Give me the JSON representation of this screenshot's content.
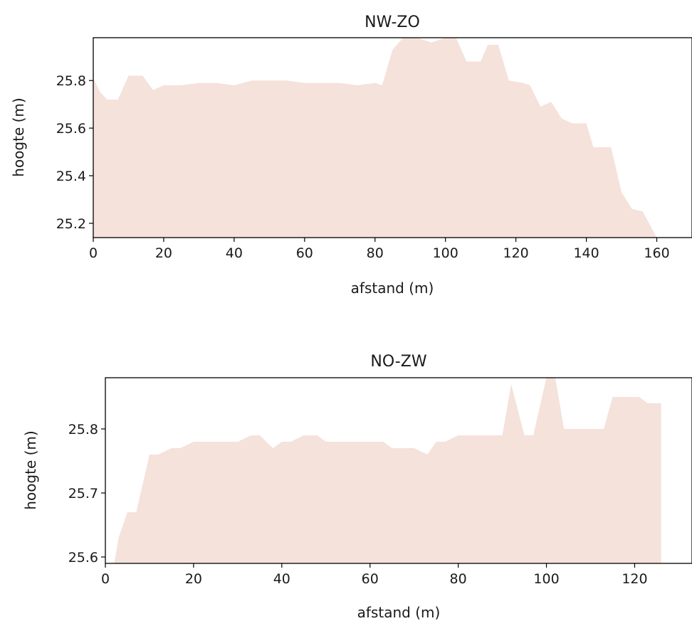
{
  "colors": {
    "fill": "#f4e2db",
    "axis": "#000000",
    "text": "#1a1a1a"
  },
  "chart_data": [
    {
      "type": "area",
      "title": "NW-ZO",
      "xlabel": "afstand (m)",
      "ylabel": "hoogte (m)",
      "xlim": [
        0,
        170
      ],
      "ylim": [
        25.14,
        25.98
      ],
      "xticks": [
        0,
        20,
        40,
        60,
        80,
        100,
        120,
        140,
        160
      ],
      "yticks": [
        25.2,
        25.4,
        25.6,
        25.8
      ],
      "ytick_labels": [
        "25.2",
        "25.4",
        "25.6",
        "25.8"
      ],
      "grid": false,
      "x": [
        0,
        2,
        4,
        7,
        10,
        14,
        17,
        20,
        25,
        30,
        35,
        40,
        45,
        50,
        55,
        60,
        65,
        70,
        75,
        80,
        82,
        85,
        88,
        92,
        96,
        100,
        103,
        106,
        110,
        112,
        115,
        118,
        122,
        124,
        127,
        130,
        133,
        136,
        140,
        142,
        145,
        147,
        150,
        153,
        156,
        160,
        163,
        165
      ],
      "y": [
        25.81,
        25.75,
        25.72,
        25.72,
        25.82,
        25.82,
        25.76,
        25.78,
        25.78,
        25.79,
        25.79,
        25.78,
        25.8,
        25.8,
        25.8,
        25.79,
        25.79,
        25.79,
        25.78,
        25.79,
        25.78,
        25.93,
        25.98,
        25.98,
        25.96,
        25.98,
        25.98,
        25.88,
        25.88,
        25.95,
        25.95,
        25.8,
        25.79,
        25.78,
        25.69,
        25.71,
        25.64,
        25.62,
        25.62,
        25.52,
        25.52,
        25.52,
        25.33,
        25.26,
        25.25,
        25.14,
        25.14,
        25.14
      ]
    },
    {
      "type": "area",
      "title": "NO-ZW",
      "xlabel": "afstand (m)",
      "ylabel": "hoogte (m)",
      "xlim": [
        0,
        133
      ],
      "ylim": [
        25.59,
        25.88
      ],
      "xticks": [
        0,
        20,
        40,
        60,
        80,
        100,
        120
      ],
      "yticks": [
        25.6,
        25.7,
        25.8
      ],
      "ytick_labels": [
        "25.6",
        "25.7",
        "25.8"
      ],
      "grid": false,
      "x": [
        2,
        3,
        5,
        7,
        10,
        12,
        15,
        17,
        20,
        25,
        30,
        33,
        35,
        38,
        40,
        42,
        45,
        48,
        50,
        53,
        55,
        58,
        60,
        63,
        65,
        68,
        70,
        73,
        75,
        77,
        80,
        82,
        85,
        88,
        90,
        92,
        95,
        97,
        100,
        102,
        104,
        106,
        110,
        113,
        115,
        118,
        121,
        123,
        126
      ],
      "y": [
        25.59,
        25.63,
        25.67,
        25.67,
        25.76,
        25.76,
        25.77,
        25.77,
        25.78,
        25.78,
        25.78,
        25.79,
        25.79,
        25.77,
        25.78,
        25.78,
        25.79,
        25.79,
        25.78,
        25.78,
        25.78,
        25.78,
        25.78,
        25.78,
        25.77,
        25.77,
        25.77,
        25.76,
        25.78,
        25.78,
        25.79,
        25.79,
        25.79,
        25.79,
        25.79,
        25.87,
        25.79,
        25.79,
        25.88,
        25.88,
        25.8,
        25.8,
        25.8,
        25.8,
        25.85,
        25.85,
        25.85,
        25.84,
        25.84
      ]
    }
  ]
}
